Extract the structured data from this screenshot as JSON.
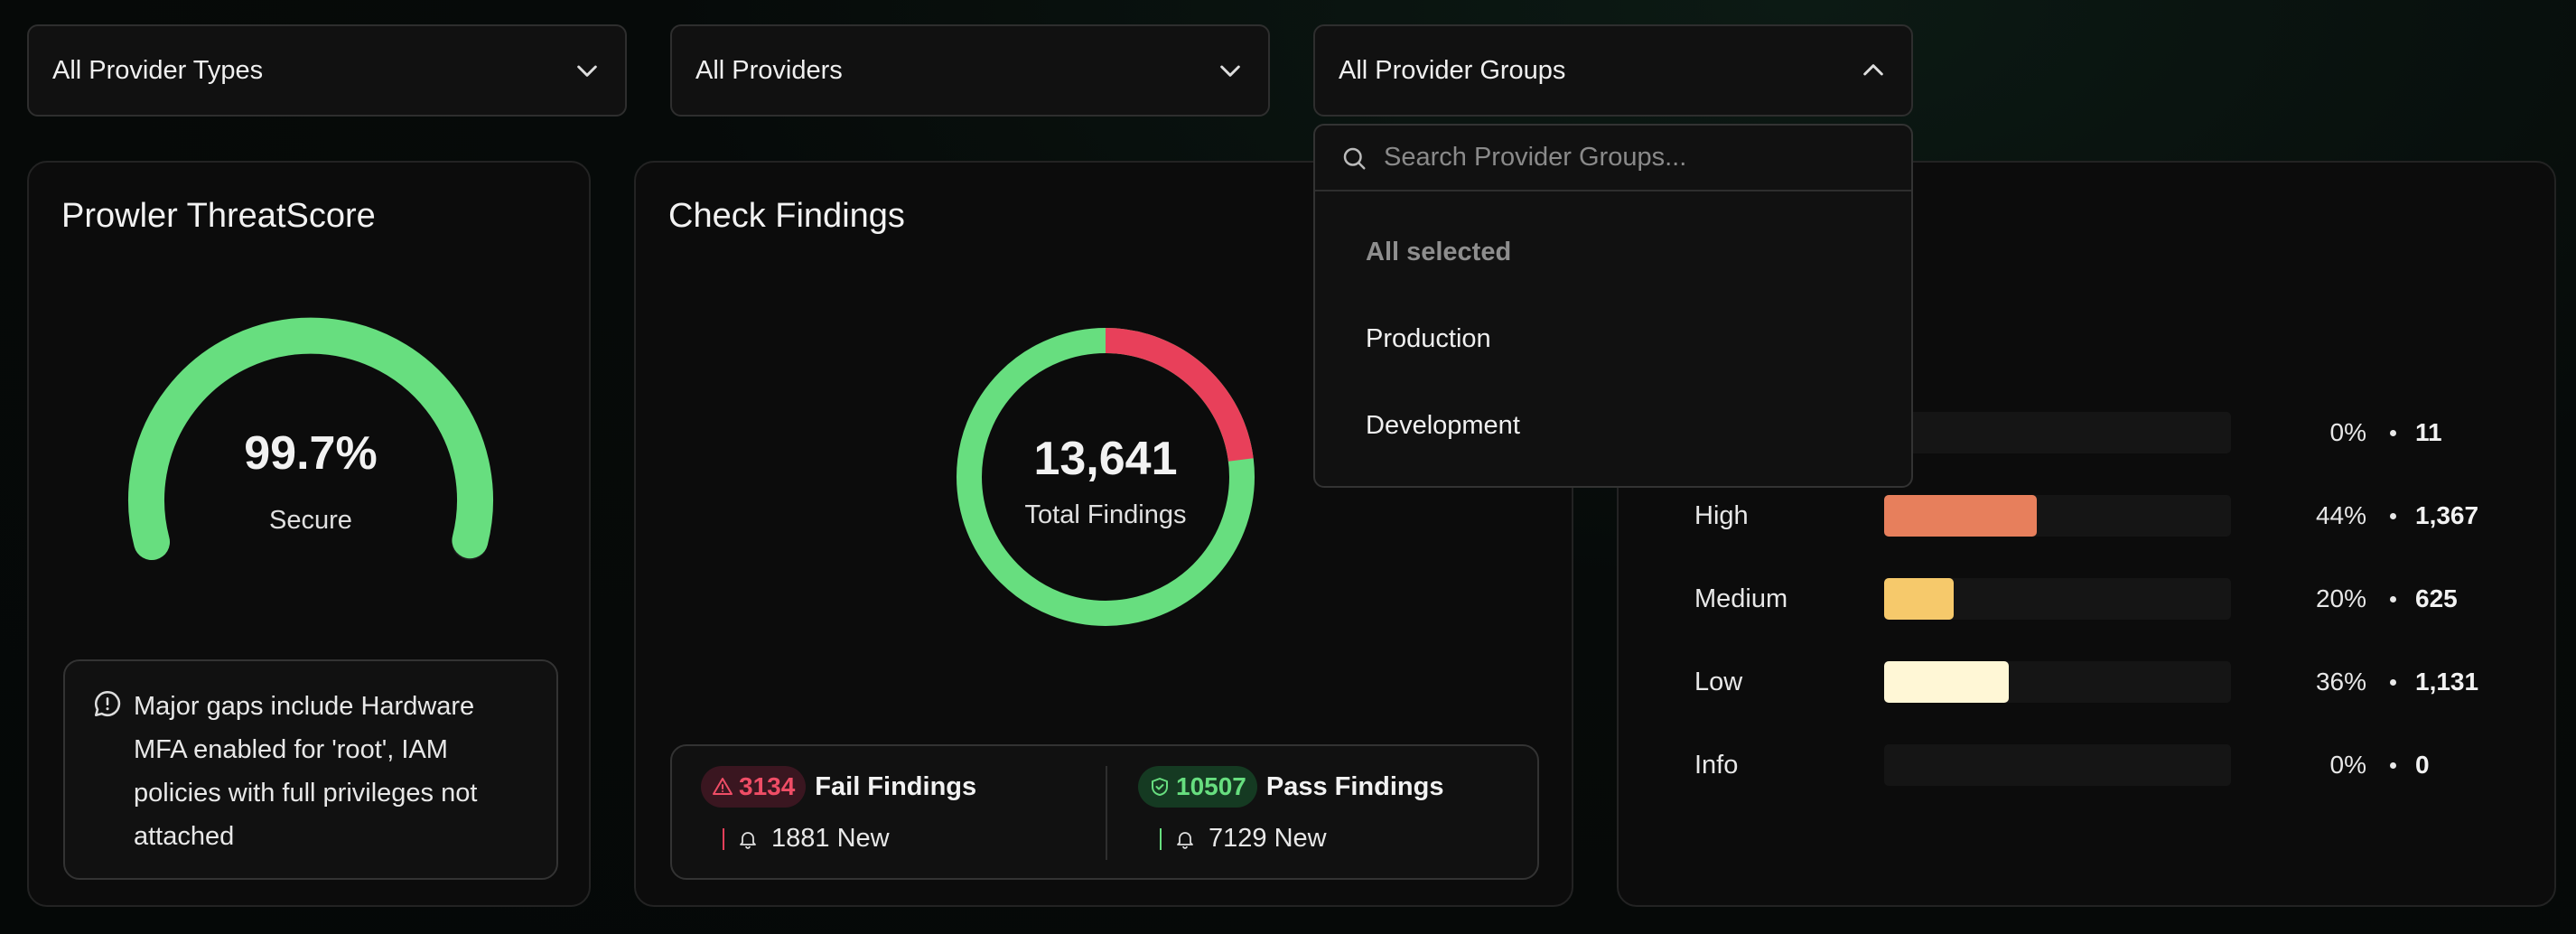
{
  "filters": {
    "provider_types": "All Provider Types",
    "providers": "All Providers",
    "provider_groups": "All Provider Groups"
  },
  "dropdown": {
    "search_placeholder": "Search Provider Groups...",
    "all_selected": "All selected",
    "options": [
      "Production",
      "Development"
    ]
  },
  "threatscore": {
    "title": "Prowler ThreatScore",
    "value": "99.7%",
    "value_fraction": 0.997,
    "label": "Secure",
    "note": "Major gaps include Hardware MFA enabled for 'root', IAM policies with full privileges not attached"
  },
  "findings": {
    "title": "Check Findings",
    "total": "13,641",
    "total_label": "Total Findings",
    "fail_count": "3134",
    "fail_label": "Fail Findings",
    "fail_new": "1881 New",
    "pass_count": "10507",
    "pass_label": "Pass Findings",
    "pass_new": "7129 New",
    "fail_fraction": 0.2298,
    "colors": {
      "fail": "#e8405a",
      "pass": "#67de7f"
    }
  },
  "severity": {
    "rows": [
      {
        "label": "",
        "pct": "0%",
        "count": "11",
        "fraction": 0,
        "color": "#e0484f"
      },
      {
        "label": "High",
        "pct": "44%",
        "count": "1,367",
        "fraction": 0.44,
        "color": "#e77f5c"
      },
      {
        "label": "Medium",
        "pct": "20%",
        "count": "625",
        "fraction": 0.2,
        "color": "#f6c96b"
      },
      {
        "label": "Low",
        "pct": "36%",
        "count": "1,131",
        "fraction": 0.36,
        "color": "#fff7d6"
      },
      {
        "label": "Info",
        "pct": "0%",
        "count": "0",
        "fraction": 0,
        "color": "#8aa0ff"
      }
    ]
  }
}
